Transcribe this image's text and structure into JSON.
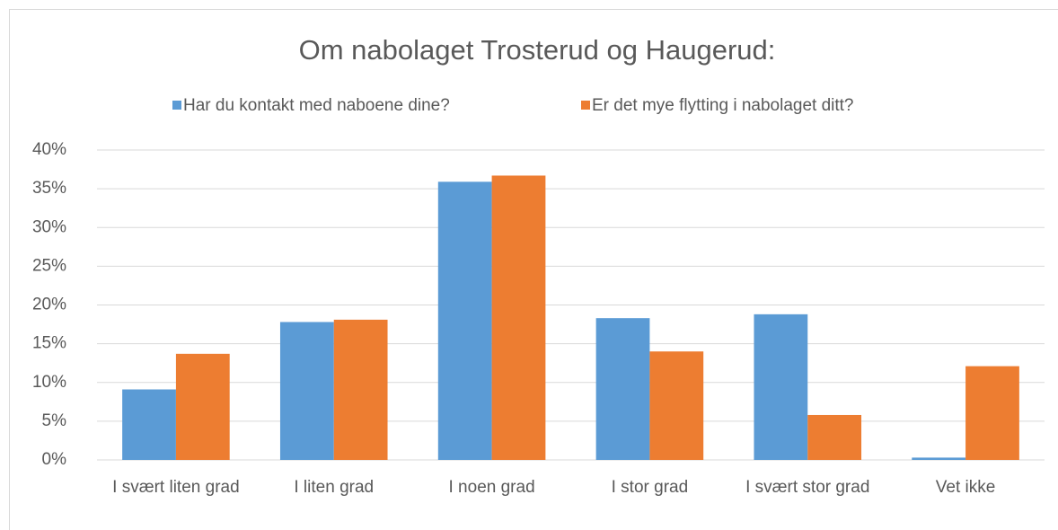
{
  "chart_data": {
    "type": "bar",
    "title": "Om nabolaget Trosterud og Haugerud:",
    "categories": [
      "I svært liten grad",
      "I liten grad",
      "I noen grad",
      "I stor grad",
      "I svært stor grad",
      "Vet ikke"
    ],
    "series": [
      {
        "name": "Har du kontakt med naboene dine?",
        "color": "#5b9bd5",
        "values": [
          9.1,
          17.8,
          35.9,
          18.3,
          18.8,
          0.3
        ]
      },
      {
        "name": "Er det mye flytting i nabolaget ditt?",
        "color": "#ed7d31",
        "values": [
          13.7,
          18.1,
          36.7,
          14.0,
          5.8,
          12.1
        ]
      }
    ],
    "ylim": [
      0,
      40
    ],
    "yticks": [
      {
        "value": 0,
        "label": "0%"
      },
      {
        "value": 5,
        "label": "5%"
      },
      {
        "value": 10,
        "label": "10%"
      },
      {
        "value": 15,
        "label": "15%"
      },
      {
        "value": 20,
        "label": "20%"
      },
      {
        "value": 25,
        "label": "25%"
      },
      {
        "value": 30,
        "label": "30%"
      },
      {
        "value": 35,
        "label": "35%"
      },
      {
        "value": 40,
        "label": "40%"
      }
    ],
    "grid": true,
    "legend": "top"
  }
}
